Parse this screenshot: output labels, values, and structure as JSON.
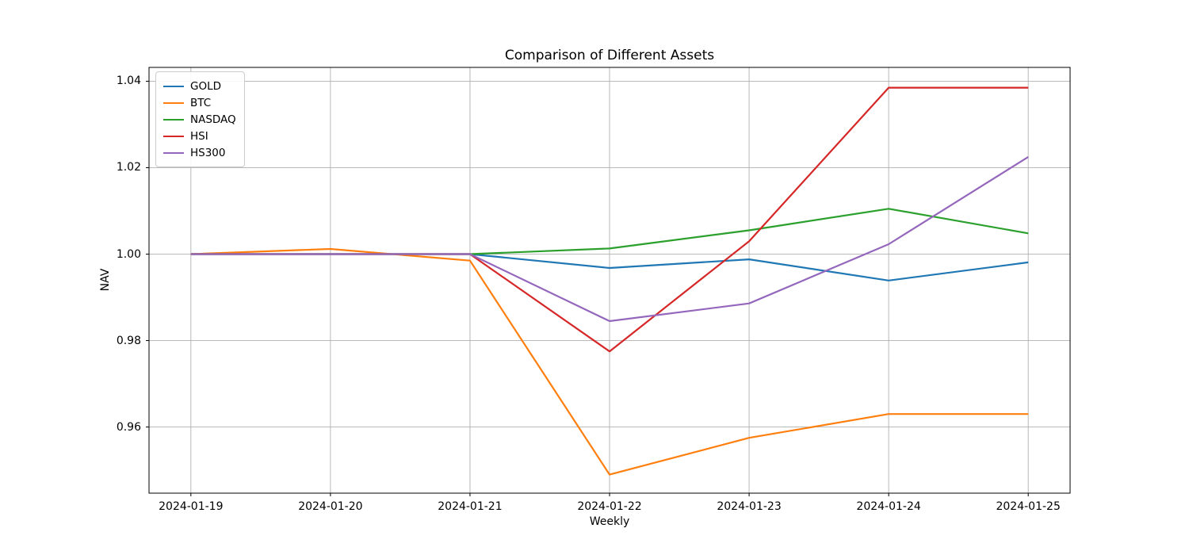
{
  "figure": {
    "title": "Comparison of Different Assets",
    "xlabel": "Weekly",
    "ylabel": "NAV"
  },
  "chart_data": {
    "type": "line",
    "title": "Comparison of Different Assets",
    "xlabel": "Weekly",
    "ylabel": "NAV",
    "x": [
      "2024-01-19",
      "2024-01-20",
      "2024-01-21",
      "2024-01-22",
      "2024-01-23",
      "2024-01-24",
      "2024-01-25"
    ],
    "series": [
      {
        "name": "GOLD",
        "color": "#1f77b4",
        "values": [
          1.0,
          1.0,
          1.0,
          0.9968,
          0.9988,
          0.9939,
          0.9981
        ]
      },
      {
        "name": "BTC",
        "color": "#ff7f0e",
        "values": [
          1.0,
          1.0012,
          0.9985,
          0.949,
          0.9575,
          0.963,
          0.963
        ]
      },
      {
        "name": "NASDAQ",
        "color": "#2ca02c",
        "values": [
          1.0,
          1.0,
          1.0,
          1.0013,
          1.0055,
          1.0105,
          1.0048
        ]
      },
      {
        "name": "HSI",
        "color": "#d62728",
        "values": [
          1.0,
          1.0,
          1.0,
          0.9775,
          1.003,
          1.0385,
          1.0385
        ]
      },
      {
        "name": "HS300",
        "color": "#9467bd",
        "values": [
          1.0,
          1.0,
          1.0,
          0.9845,
          0.9886,
          1.0023,
          1.0225
        ]
      }
    ],
    "yticks": [
      0.96,
      0.98,
      1.0,
      1.02,
      1.04
    ],
    "ytick_labels": [
      "0.96",
      "0.98",
      "1.00",
      "1.02",
      "1.04"
    ],
    "ylim": [
      0.9447,
      1.0432
    ],
    "xlim_index": [
      -0.3,
      6.3
    ],
    "grid": true,
    "grid_color": "#b0b0b0",
    "spine_color": "#000000",
    "legend_position": "upper left",
    "legend_border_color": "#cccccc"
  }
}
